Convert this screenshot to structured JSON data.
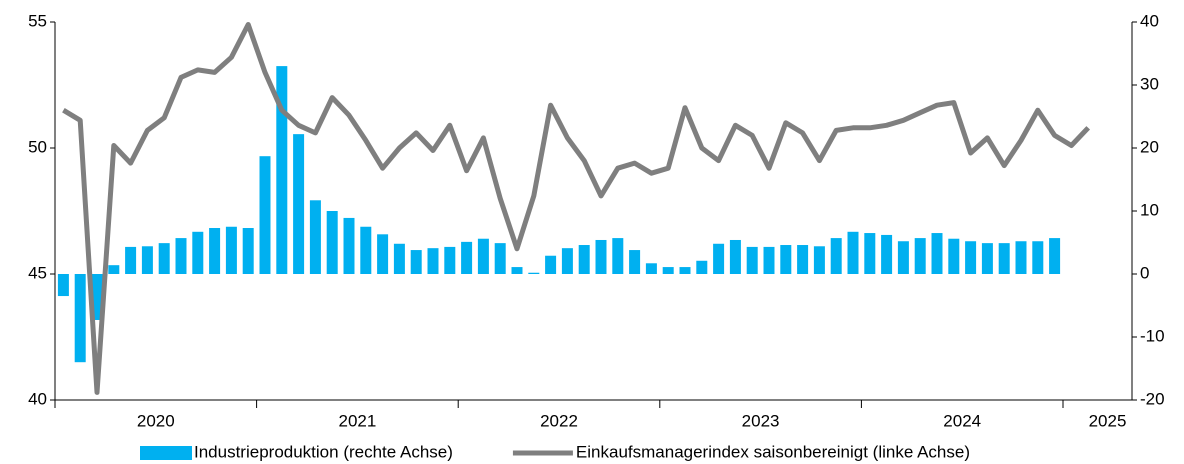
{
  "chart_data": {
    "type": "bar",
    "categories": [
      null,
      null,
      null,
      null,
      null,
      null,
      null,
      null,
      null,
      null,
      null,
      null,
      null,
      null,
      null,
      null,
      null,
      null,
      null,
      null,
      null,
      null,
      null,
      null,
      null,
      null,
      null,
      null,
      null,
      null,
      null,
      null,
      null,
      null,
      null,
      null,
      null,
      null,
      null,
      null,
      null,
      null,
      null,
      null,
      null,
      null,
      null,
      null,
      null,
      null,
      null,
      null,
      null,
      null,
      null,
      null,
      null,
      null,
      null,
      null,
      null,
      null
    ],
    "year_labels": [
      "2020",
      "2021",
      "2022",
      "2023",
      "2024",
      "2025"
    ],
    "series": [
      {
        "name": "Industrieproduktion (rechte Achse)",
        "type": "bar",
        "axis": "y2",
        "color": "#00b0f0",
        "values": [
          -3.5,
          -14,
          -7.3,
          1.4,
          4.3,
          4.4,
          4.9,
          5.7,
          6.7,
          7.3,
          7.5,
          7.3,
          18.7,
          33.0,
          22.2,
          11.7,
          10.0,
          8.9,
          7.5,
          6.3,
          4.8,
          3.8,
          4.1,
          4.3,
          5.1,
          5.6,
          4.9,
          1.1,
          0.2,
          2.9,
          4.1,
          4.6,
          5.4,
          5.7,
          3.8,
          1.7,
          1.1,
          1.1,
          2.1,
          4.8,
          5.4,
          4.3,
          4.3,
          4.6,
          4.6,
          4.4,
          5.7,
          6.7,
          6.5,
          6.2,
          5.2,
          5.7,
          6.5,
          5.6,
          5.2,
          4.9,
          4.9,
          5.2,
          5.2,
          5.7,
          null,
          null
        ]
      },
      {
        "name": "Einkaufsmanagerindex saisonbereinigt (linke Achse)",
        "type": "line",
        "axis": "y",
        "color": "#7f7f7f",
        "values": [
          51.5,
          51.1,
          40.3,
          50.1,
          49.4,
          50.7,
          51.2,
          52.8,
          53.1,
          53.0,
          53.6,
          54.9,
          53.0,
          51.5,
          50.9,
          50.6,
          52.0,
          51.3,
          50.3,
          49.2,
          50.0,
          50.6,
          49.9,
          50.9,
          49.1,
          50.4,
          48.0,
          46.0,
          48.1,
          51.7,
          50.4,
          49.5,
          48.1,
          49.2,
          49.4,
          49.0,
          49.2,
          51.6,
          50.0,
          49.5,
          50.9,
          50.5,
          49.2,
          51.0,
          50.6,
          49.5,
          50.7,
          50.8,
          50.8,
          50.9,
          51.1,
          51.4,
          51.7,
          51.8,
          49.8,
          50.4,
          49.3,
          50.3,
          51.5,
          50.5,
          50.1,
          50.8
        ]
      }
    ],
    "ylim": [
      40,
      55
    ],
    "yticks": [
      40,
      45,
      50,
      55
    ],
    "y2lim": [
      -20,
      40
    ],
    "y2ticks": [
      -20,
      -10,
      0,
      10,
      20,
      30,
      40
    ],
    "legend": "bottom"
  }
}
